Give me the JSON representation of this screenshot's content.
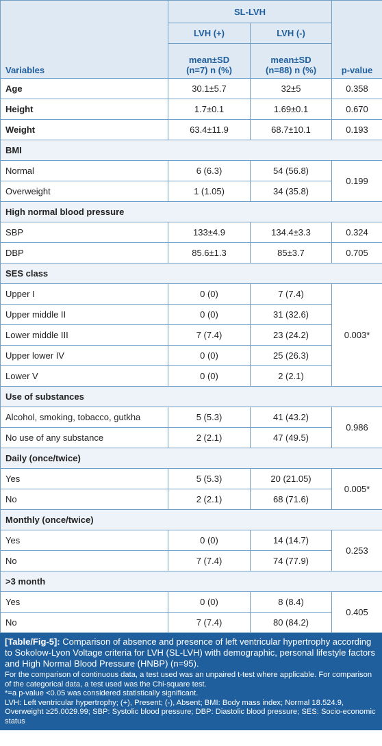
{
  "header": {
    "group": "SL-LVH",
    "variables": "Variables",
    "lvh_pos": "LVH (+)",
    "lvh_neg": "LVH (-)",
    "stat_pos_l1": "mean±SD",
    "stat_pos_l2": "(n=7) n (%)",
    "stat_neg_l1": "mean±SD",
    "stat_neg_l2": "(n=88) n (%)",
    "pvalue": "p-value"
  },
  "rows": {
    "age": {
      "label": "Age",
      "pos": "30.1±5.7",
      "neg": "32±5",
      "p": "0.358"
    },
    "height": {
      "label": "Height",
      "pos": "1.7±0.1",
      "neg": "1.69±0.1",
      "p": "0.670"
    },
    "weight": {
      "label": "Weight",
      "pos": "63.4±11.9",
      "neg": "68.7±10.1",
      "p": "0.193"
    },
    "bmi": {
      "label": "BMI"
    },
    "bmi_normal": {
      "label": "Normal",
      "pos": "6 (6.3)",
      "neg": "54 (56.8)"
    },
    "bmi_over": {
      "label": "Overweight",
      "pos": "1 (1.05)",
      "neg": "34 (35.8)"
    },
    "bmi_p": "0.199",
    "hnbp": {
      "label": "High normal blood pressure"
    },
    "sbp": {
      "label": "SBP",
      "pos": "133±4.9",
      "neg": "134.4±3.3",
      "p": "0.324"
    },
    "dbp": {
      "label": "DBP",
      "pos": "85.6±1.3",
      "neg": "85±3.7",
      "p": "0.705"
    },
    "ses": {
      "label": "SES class"
    },
    "ses1": {
      "label": "Upper I",
      "pos": "0 (0)",
      "neg": "7 (7.4)"
    },
    "ses2": {
      "label": "Upper middle II",
      "pos": "0 (0)",
      "neg": "31 (32.6)"
    },
    "ses3": {
      "label": "Lower middle III",
      "pos": "7 (7.4)",
      "neg": "23 (24.2)"
    },
    "ses4": {
      "label": "Upper lower IV",
      "pos": "0 (0)",
      "neg": "25 (26.3)"
    },
    "ses5": {
      "label": "Lower V",
      "pos": "0 (0)",
      "neg": "2 (2.1)"
    },
    "ses_p": "0.003*",
    "subs": {
      "label": "Use of substances"
    },
    "subs1": {
      "label": "Alcohol, smoking, tobacco, gutkha",
      "pos": "5 (5.3)",
      "neg": "41 (43.2)"
    },
    "subs2": {
      "label": "No use of any substance",
      "pos": "2 (2.1)",
      "neg": "47 (49.5)"
    },
    "subs_p": "0.986",
    "daily": {
      "label": "Daily (once/twice)"
    },
    "daily_yes": {
      "label": "Yes",
      "pos": "5 (5.3)",
      "neg": "20 (21.05)"
    },
    "daily_no": {
      "label": "No",
      "pos": "2 (2.1)",
      "neg": "68 (71.6)"
    },
    "daily_p": "0.005*",
    "monthly": {
      "label": "Monthly (once/twice)"
    },
    "monthly_yes": {
      "label": "Yes",
      "pos": "0 (0)",
      "neg": "14 (14.7)"
    },
    "monthly_no": {
      "label": "No",
      "pos": "7 (7.4)",
      "neg": "74 (77.9)"
    },
    "monthly_p": "0.253",
    "m3": {
      "label": ">3 month"
    },
    "m3_yes": {
      "label": "Yes",
      "pos": "0 (0)",
      "neg": "8 (8.4)"
    },
    "m3_no": {
      "label": "No",
      "pos": "7 (7.4)",
      "neg": "80 (84.2)"
    },
    "m3_p": "0.405"
  },
  "caption": {
    "label": "[Table/Fig-5]:",
    "title": " Comparison of absence and presence of left ventricular hypertrophy according to Sokolow-Lyon Voltage criteria for LVH (SL-LVH) with demographic, personal lifestyle factors and High Normal Blood Pressure (HNBP) (n=95).",
    "note1": "For the comparison of continuous data, a test used was an unpaired t-test where applicable. For comparison of the categorical data, a test used was the Chi-square test.",
    "note2": "*=a p-value <0.05 was considered statistically significant.",
    "note3": "LVH: Left ventricular hypertrophy; (+), Present; (-), Absent; BMI: Body mass index; Normal 18.524.9, Overweight ≥25.0029.99; SBP: Systolic blood pressure; DBP: Diastolic blood pressure; SES: Socio-economic status"
  },
  "colors": {
    "header_bg": "#dfe9f4",
    "header_text": "#1f5f9e",
    "border": "#6f9ec6",
    "caption_bg": "#1f5f9e"
  }
}
